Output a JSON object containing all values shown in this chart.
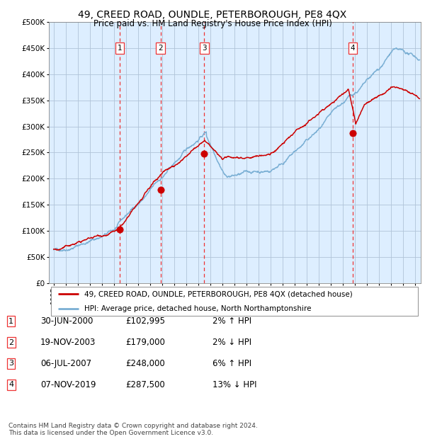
{
  "title": "49, CREED ROAD, OUNDLE, PETERBOROUGH, PE8 4QX",
  "subtitle": "Price paid vs. HM Land Registry's House Price Index (HPI)",
  "legend_line1": "49, CREED ROAD, OUNDLE, PETERBOROUGH, PE8 4QX (detached house)",
  "legend_line2": "HPI: Average price, detached house, North Northamptonshire",
  "footer1": "Contains HM Land Registry data © Crown copyright and database right 2024.",
  "footer2": "This data is licensed under the Open Government Licence v3.0.",
  "transactions": [
    {
      "num": 1,
      "date": "30-JUN-2000",
      "price": "£102,995",
      "pct": "2% ↑ HPI",
      "x_year": 2000.5,
      "y_val": 102995
    },
    {
      "num": 2,
      "date": "19-NOV-2003",
      "price": "£179,000",
      "pct": "2% ↓ HPI",
      "x_year": 2003.88,
      "y_val": 179000
    },
    {
      "num": 3,
      "date": "06-JUL-2007",
      "price": "£248,000",
      "pct": "6% ↑ HPI",
      "x_year": 2007.51,
      "y_val": 248000
    },
    {
      "num": 4,
      "date": "07-NOV-2019",
      "price": "£287,500",
      "pct": "13% ↓ HPI",
      "x_year": 2019.85,
      "y_val": 287500
    }
  ],
  "hpi_color": "#7aafd4",
  "price_color": "#cc0000",
  "bg_color": "#ddeeff",
  "grid_color": "#b0c4d8",
  "vline_color": "#ee3333",
  "marker_color": "#cc0000",
  "xlim": [
    1994.6,
    2025.5
  ],
  "ylim": [
    0,
    500000
  ],
  "yticks": [
    0,
    50000,
    100000,
    150000,
    200000,
    250000,
    300000,
    350000,
    400000,
    450000,
    500000
  ],
  "xticks": [
    1995,
    1996,
    1997,
    1998,
    1999,
    2000,
    2001,
    2002,
    2003,
    2004,
    2005,
    2006,
    2007,
    2008,
    2009,
    2010,
    2011,
    2012,
    2013,
    2014,
    2015,
    2016,
    2017,
    2018,
    2019,
    2020,
    2021,
    2022,
    2023,
    2024,
    2025
  ]
}
